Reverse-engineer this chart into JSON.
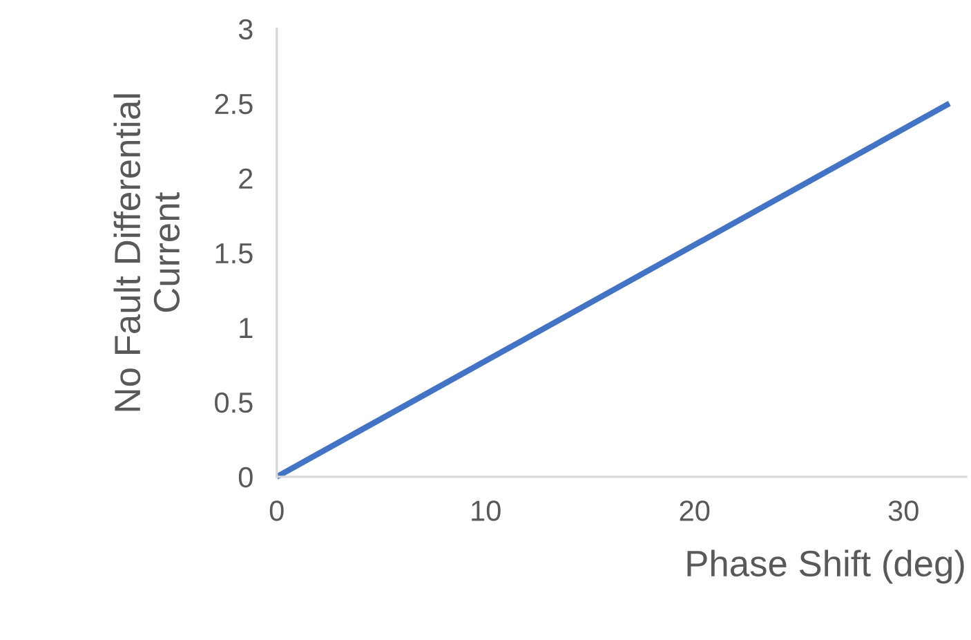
{
  "chart_data": {
    "type": "line",
    "xlabel": "Phase Shift (deg)",
    "ylabel": "No Fault Differential\nCurrent",
    "x": [
      0,
      32.2
    ],
    "series": [
      {
        "color": "#4472c4",
        "values": [
          0,
          2.5
        ]
      }
    ],
    "xlim": [
      0,
      33
    ],
    "xticks": [
      0,
      10,
      20,
      30
    ],
    "ylim": [
      0,
      3
    ],
    "yticks": [
      0,
      0.5,
      1,
      1.5,
      2,
      2.5,
      3
    ],
    "grid": false,
    "legend": false,
    "marker": "none",
    "line_style": "solid"
  }
}
